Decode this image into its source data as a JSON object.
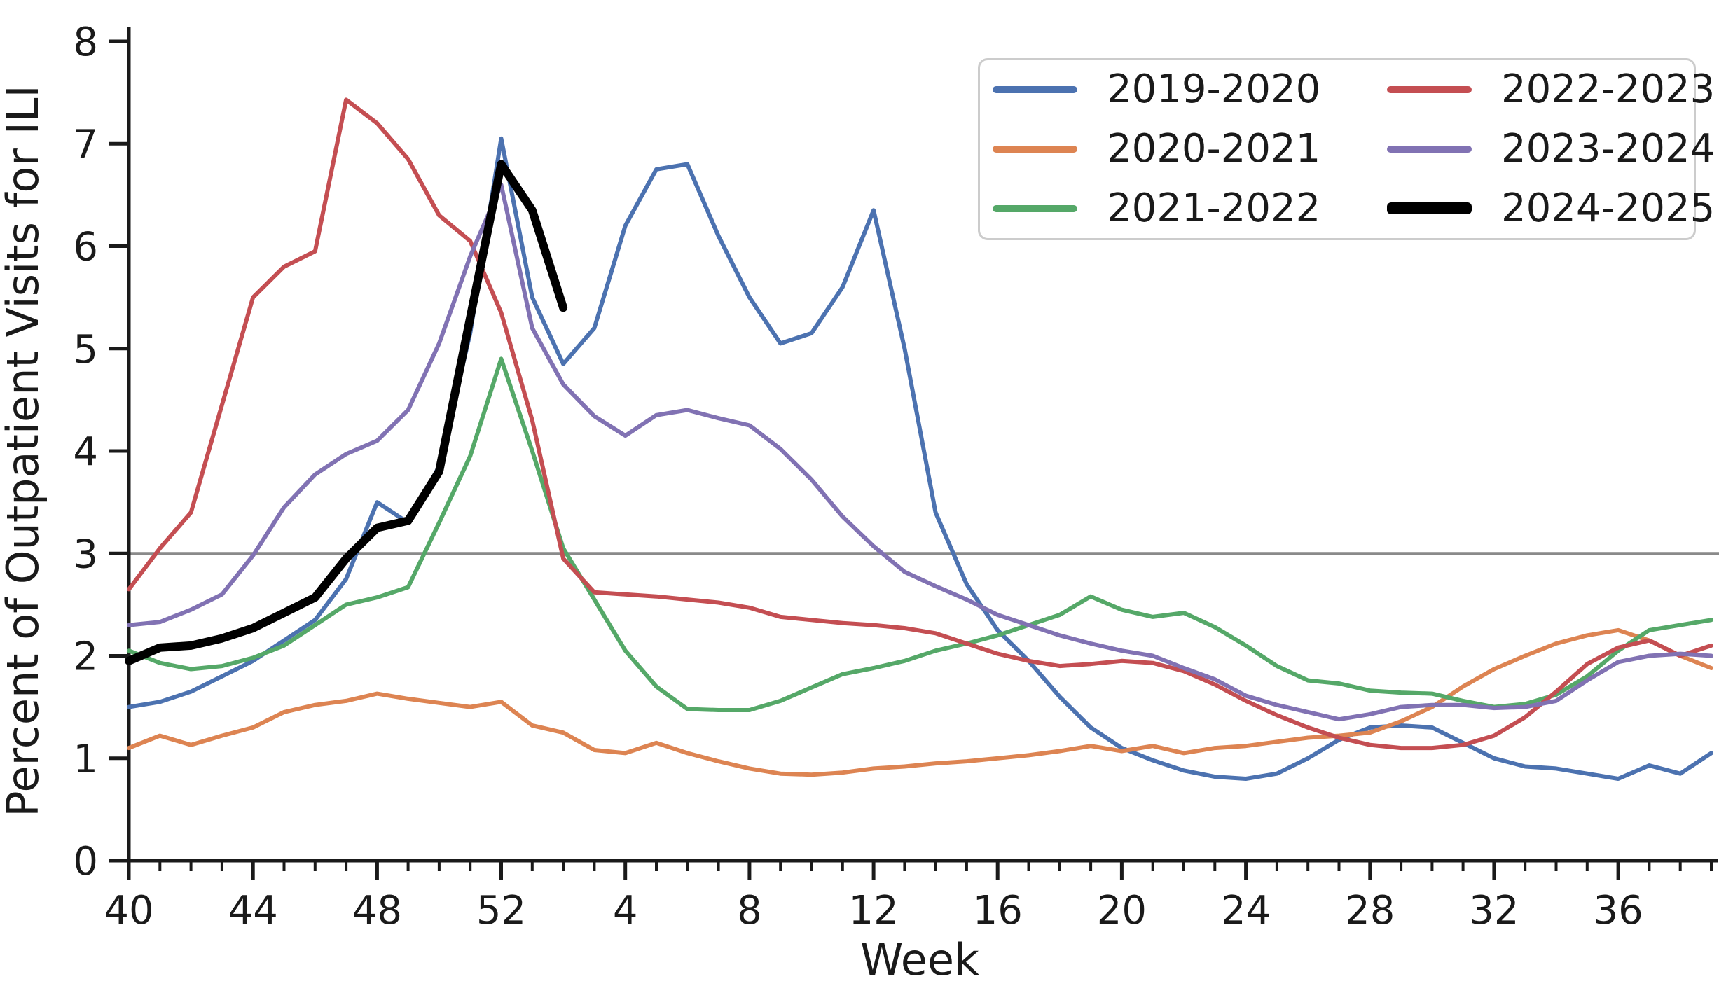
{
  "chart_data": {
    "type": "line",
    "title": "",
    "xlabel": "Week",
    "ylabel": "Percent of Outpatient Visits for ILI",
    "ylim": [
      0,
      8
    ],
    "yticks": [
      "0",
      "1",
      "2",
      "3",
      "4",
      "5",
      "6",
      "7",
      "8"
    ],
    "x_categories": [
      "40",
      "41",
      "42",
      "43",
      "44",
      "45",
      "46",
      "47",
      "48",
      "49",
      "50",
      "51",
      "52",
      "1",
      "2",
      "3",
      "4",
      "5",
      "6",
      "7",
      "8",
      "9",
      "10",
      "11",
      "12",
      "13",
      "14",
      "15",
      "16",
      "17",
      "18",
      "19",
      "20",
      "21",
      "22",
      "23",
      "24",
      "25",
      "26",
      "27",
      "28",
      "29",
      "30",
      "31",
      "32",
      "33",
      "34",
      "35",
      "36",
      "37",
      "38",
      "39"
    ],
    "x_major_tick_indices": [
      0,
      4,
      8,
      12,
      16,
      20,
      24,
      28,
      32,
      36,
      40,
      44,
      48
    ],
    "x_major_tick_labels": [
      "40",
      "44",
      "48",
      "52",
      "4",
      "8",
      "12",
      "16",
      "20",
      "24",
      "28",
      "32",
      "36"
    ],
    "grid": false,
    "legend_position": "upper right",
    "reference_line": {
      "value": 3.0,
      "color": "#8a8a8a",
      "name": "baseline-3-percent"
    },
    "axis_color": "#1a1a1a",
    "series": [
      {
        "name": "2019-2020",
        "color": "#4C72B0",
        "linewidth": 6,
        "values": [
          1.5,
          1.55,
          1.65,
          1.8,
          1.95,
          2.15,
          2.35,
          2.75,
          3.5,
          3.3,
          3.85,
          5.15,
          7.05,
          5.5,
          4.85,
          5.2,
          6.2,
          6.75,
          6.8,
          6.1,
          5.5,
          5.05,
          5.15,
          5.6,
          6.35,
          5.0,
          3.4,
          2.7,
          2.25,
          1.95,
          1.6,
          1.3,
          1.1,
          0.98,
          0.88,
          0.82,
          0.8,
          0.85,
          1.0,
          1.18,
          1.3,
          1.32,
          1.3,
          1.15,
          1.0,
          0.92,
          0.9,
          0.85,
          0.8,
          0.93,
          0.85,
          1.05
        ]
      },
      {
        "name": "2020-2021",
        "color": "#DD8452",
        "linewidth": 6,
        "values": [
          1.1,
          1.22,
          1.13,
          1.22,
          1.3,
          1.45,
          1.52,
          1.56,
          1.63,
          1.58,
          1.54,
          1.5,
          1.55,
          1.32,
          1.25,
          1.08,
          1.05,
          1.15,
          1.05,
          0.97,
          0.9,
          0.85,
          0.84,
          0.86,
          0.9,
          0.92,
          0.95,
          0.97,
          1.0,
          1.03,
          1.07,
          1.12,
          1.07,
          1.12,
          1.05,
          1.1,
          1.12,
          1.16,
          1.2,
          1.22,
          1.25,
          1.36,
          1.5,
          1.7,
          1.87,
          2.0,
          2.12,
          2.2,
          2.25,
          2.15,
          2.0,
          1.88
        ]
      },
      {
        "name": "2021-2022",
        "color": "#55A868",
        "linewidth": 6,
        "values": [
          2.05,
          1.93,
          1.87,
          1.9,
          1.98,
          2.1,
          2.3,
          2.5,
          2.57,
          2.67,
          3.3,
          3.95,
          4.9,
          4.0,
          3.05,
          2.55,
          2.05,
          1.7,
          1.48,
          1.47,
          1.47,
          1.56,
          1.69,
          1.82,
          1.88,
          1.95,
          2.05,
          2.12,
          2.2,
          2.3,
          2.4,
          2.58,
          2.45,
          2.38,
          2.42,
          2.28,
          2.1,
          1.9,
          1.76,
          1.73,
          1.66,
          1.64,
          1.63,
          1.56,
          1.5,
          1.53,
          1.62,
          1.8,
          2.05,
          2.25,
          2.3,
          2.35
        ]
      },
      {
        "name": "2022-2023",
        "color": "#C44E52",
        "linewidth": 6,
        "values": [
          2.65,
          3.05,
          3.4,
          4.45,
          5.5,
          5.8,
          5.95,
          7.43,
          7.2,
          6.85,
          6.3,
          6.05,
          5.35,
          4.3,
          2.95,
          2.62,
          2.6,
          2.58,
          2.55,
          2.52,
          2.47,
          2.38,
          2.35,
          2.32,
          2.3,
          2.27,
          2.22,
          2.12,
          2.02,
          1.95,
          1.9,
          1.92,
          1.95,
          1.93,
          1.85,
          1.72,
          1.56,
          1.42,
          1.3,
          1.2,
          1.13,
          1.1,
          1.1,
          1.13,
          1.22,
          1.4,
          1.65,
          1.92,
          2.08,
          2.15,
          2.0,
          2.1
        ]
      },
      {
        "name": "2023-2024",
        "color": "#8172B3",
        "linewidth": 6,
        "values": [
          2.3,
          2.33,
          2.45,
          2.6,
          2.98,
          3.45,
          3.77,
          3.97,
          4.1,
          4.4,
          5.05,
          5.9,
          6.6,
          5.2,
          4.65,
          4.34,
          4.15,
          4.35,
          4.4,
          4.32,
          4.25,
          4.02,
          3.72,
          3.36,
          3.07,
          2.82,
          2.68,
          2.55,
          2.4,
          2.3,
          2.2,
          2.12,
          2.05,
          2.0,
          1.88,
          1.77,
          1.61,
          1.52,
          1.45,
          1.38,
          1.43,
          1.5,
          1.52,
          1.52,
          1.49,
          1.5,
          1.56,
          1.76,
          1.94,
          2.0,
          2.02,
          2.0
        ]
      },
      {
        "name": "2024-2025",
        "color": "#000000",
        "linewidth": 12,
        "values": [
          1.95,
          2.08,
          2.1,
          2.17,
          2.27,
          2.42,
          2.57,
          2.95,
          3.25,
          3.32,
          3.8,
          5.3,
          6.8,
          6.35,
          5.4,
          null,
          null,
          null,
          null,
          null,
          null,
          null,
          null,
          null,
          null,
          null,
          null,
          null,
          null,
          null,
          null,
          null,
          null,
          null,
          null,
          null,
          null,
          null,
          null,
          null,
          null,
          null,
          null,
          null,
          null,
          null,
          null,
          null,
          null,
          null,
          null,
          null
        ]
      }
    ]
  }
}
